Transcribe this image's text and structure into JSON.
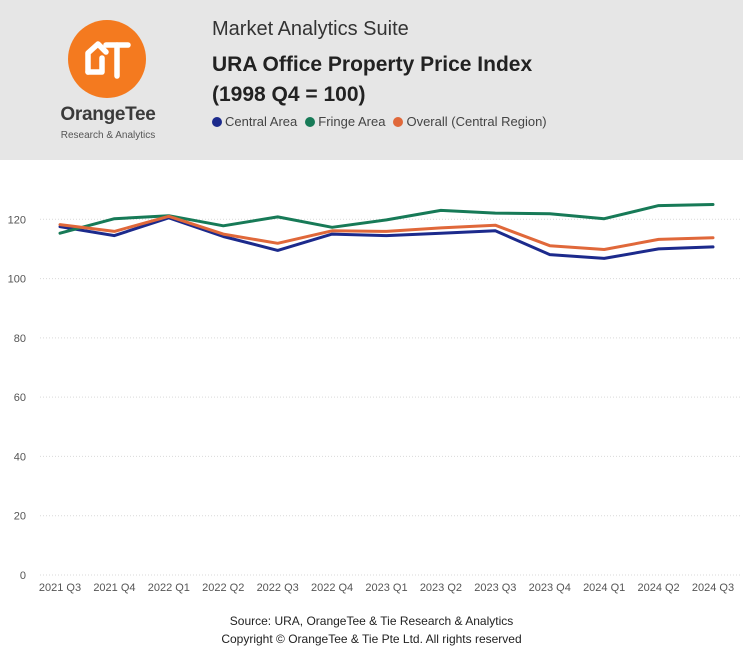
{
  "header": {
    "suite": "Market Analytics Suite",
    "title_line1": "URA Office Property Price Index",
    "title_line2": "(1998 Q4 = 100)"
  },
  "brand": {
    "name": "OrangeTee",
    "subtitle": "Research & Analytics",
    "color": "#f47a1f"
  },
  "footer": {
    "source": "Source: URA, OrangeTee & Tie Research & Analytics",
    "copyright": "Copyright © OrangeTee & Tie Pte Ltd. All rights reserved"
  },
  "chart_data": {
    "type": "line",
    "title": "URA Office Property Price Index (1998 Q4 = 100)",
    "categories": [
      "2021 Q3",
      "2021 Q4",
      "2022 Q1",
      "2022 Q2",
      "2022 Q3",
      "2022 Q4",
      "2023 Q1",
      "2023 Q2",
      "2023 Q3",
      "2023 Q4",
      "2024 Q1",
      "2024 Q2",
      "2024 Q3"
    ],
    "ylim": [
      0,
      140
    ],
    "yticks": [
      0,
      20,
      40,
      60,
      80,
      100,
      120
    ],
    "grid": true,
    "legend_position": "top",
    "series": [
      {
        "name": "Central Area",
        "color": "#1c2a8c",
        "values": [
          117.5,
          114.5,
          120.5,
          114.2,
          109.5,
          115.0,
          114.5,
          115.3,
          116.1,
          108.1,
          106.8,
          110.0,
          110.7
        ]
      },
      {
        "name": "Fringe Area",
        "color": "#177a57",
        "values": [
          115.3,
          120.2,
          121.2,
          117.8,
          120.8,
          117.3,
          119.8,
          123.0,
          122.1,
          121.9,
          120.2,
          124.6,
          125.0
        ]
      },
      {
        "name": "Overall (Central Region)",
        "color": "#e0683a",
        "values": [
          118.2,
          115.9,
          121.0,
          115.0,
          111.9,
          116.1,
          115.9,
          117.1,
          118.0,
          111.1,
          109.8,
          113.2,
          113.8
        ]
      }
    ]
  }
}
